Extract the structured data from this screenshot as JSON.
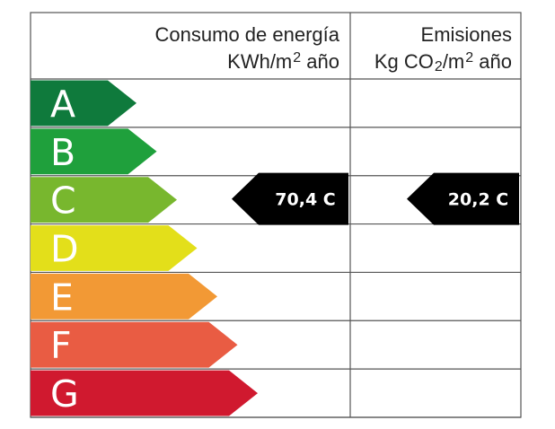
{
  "header": {
    "consumption_line1": "Consumo de energía",
    "consumption_unit_prefix": "KWh/m",
    "consumption_unit_exp": "2",
    "consumption_unit_suffix": " año",
    "emissions_line1": "Emisiones",
    "emissions_unit_prefix": "Kg CO",
    "emissions_unit_sub": "2",
    "emissions_unit_mid": "/m",
    "emissions_unit_exp": "2",
    "emissions_unit_suffix": " año"
  },
  "classes": [
    {
      "letter": "A",
      "color": "#0f7a3c"
    },
    {
      "letter": "B",
      "color": "#1fa03c"
    },
    {
      "letter": "C",
      "color": "#78b72e"
    },
    {
      "letter": "D",
      "color": "#e3df1a"
    },
    {
      "letter": "E",
      "color": "#f29935"
    },
    {
      "letter": "F",
      "color": "#e95c43"
    },
    {
      "letter": "G",
      "color": "#d0192f"
    }
  ],
  "ratings": {
    "consumption": {
      "text": "70,4 C",
      "class_index": 2
    },
    "emissions": {
      "text": "20,2 C",
      "class_index": 2
    }
  },
  "indicator_color": "#000000"
}
